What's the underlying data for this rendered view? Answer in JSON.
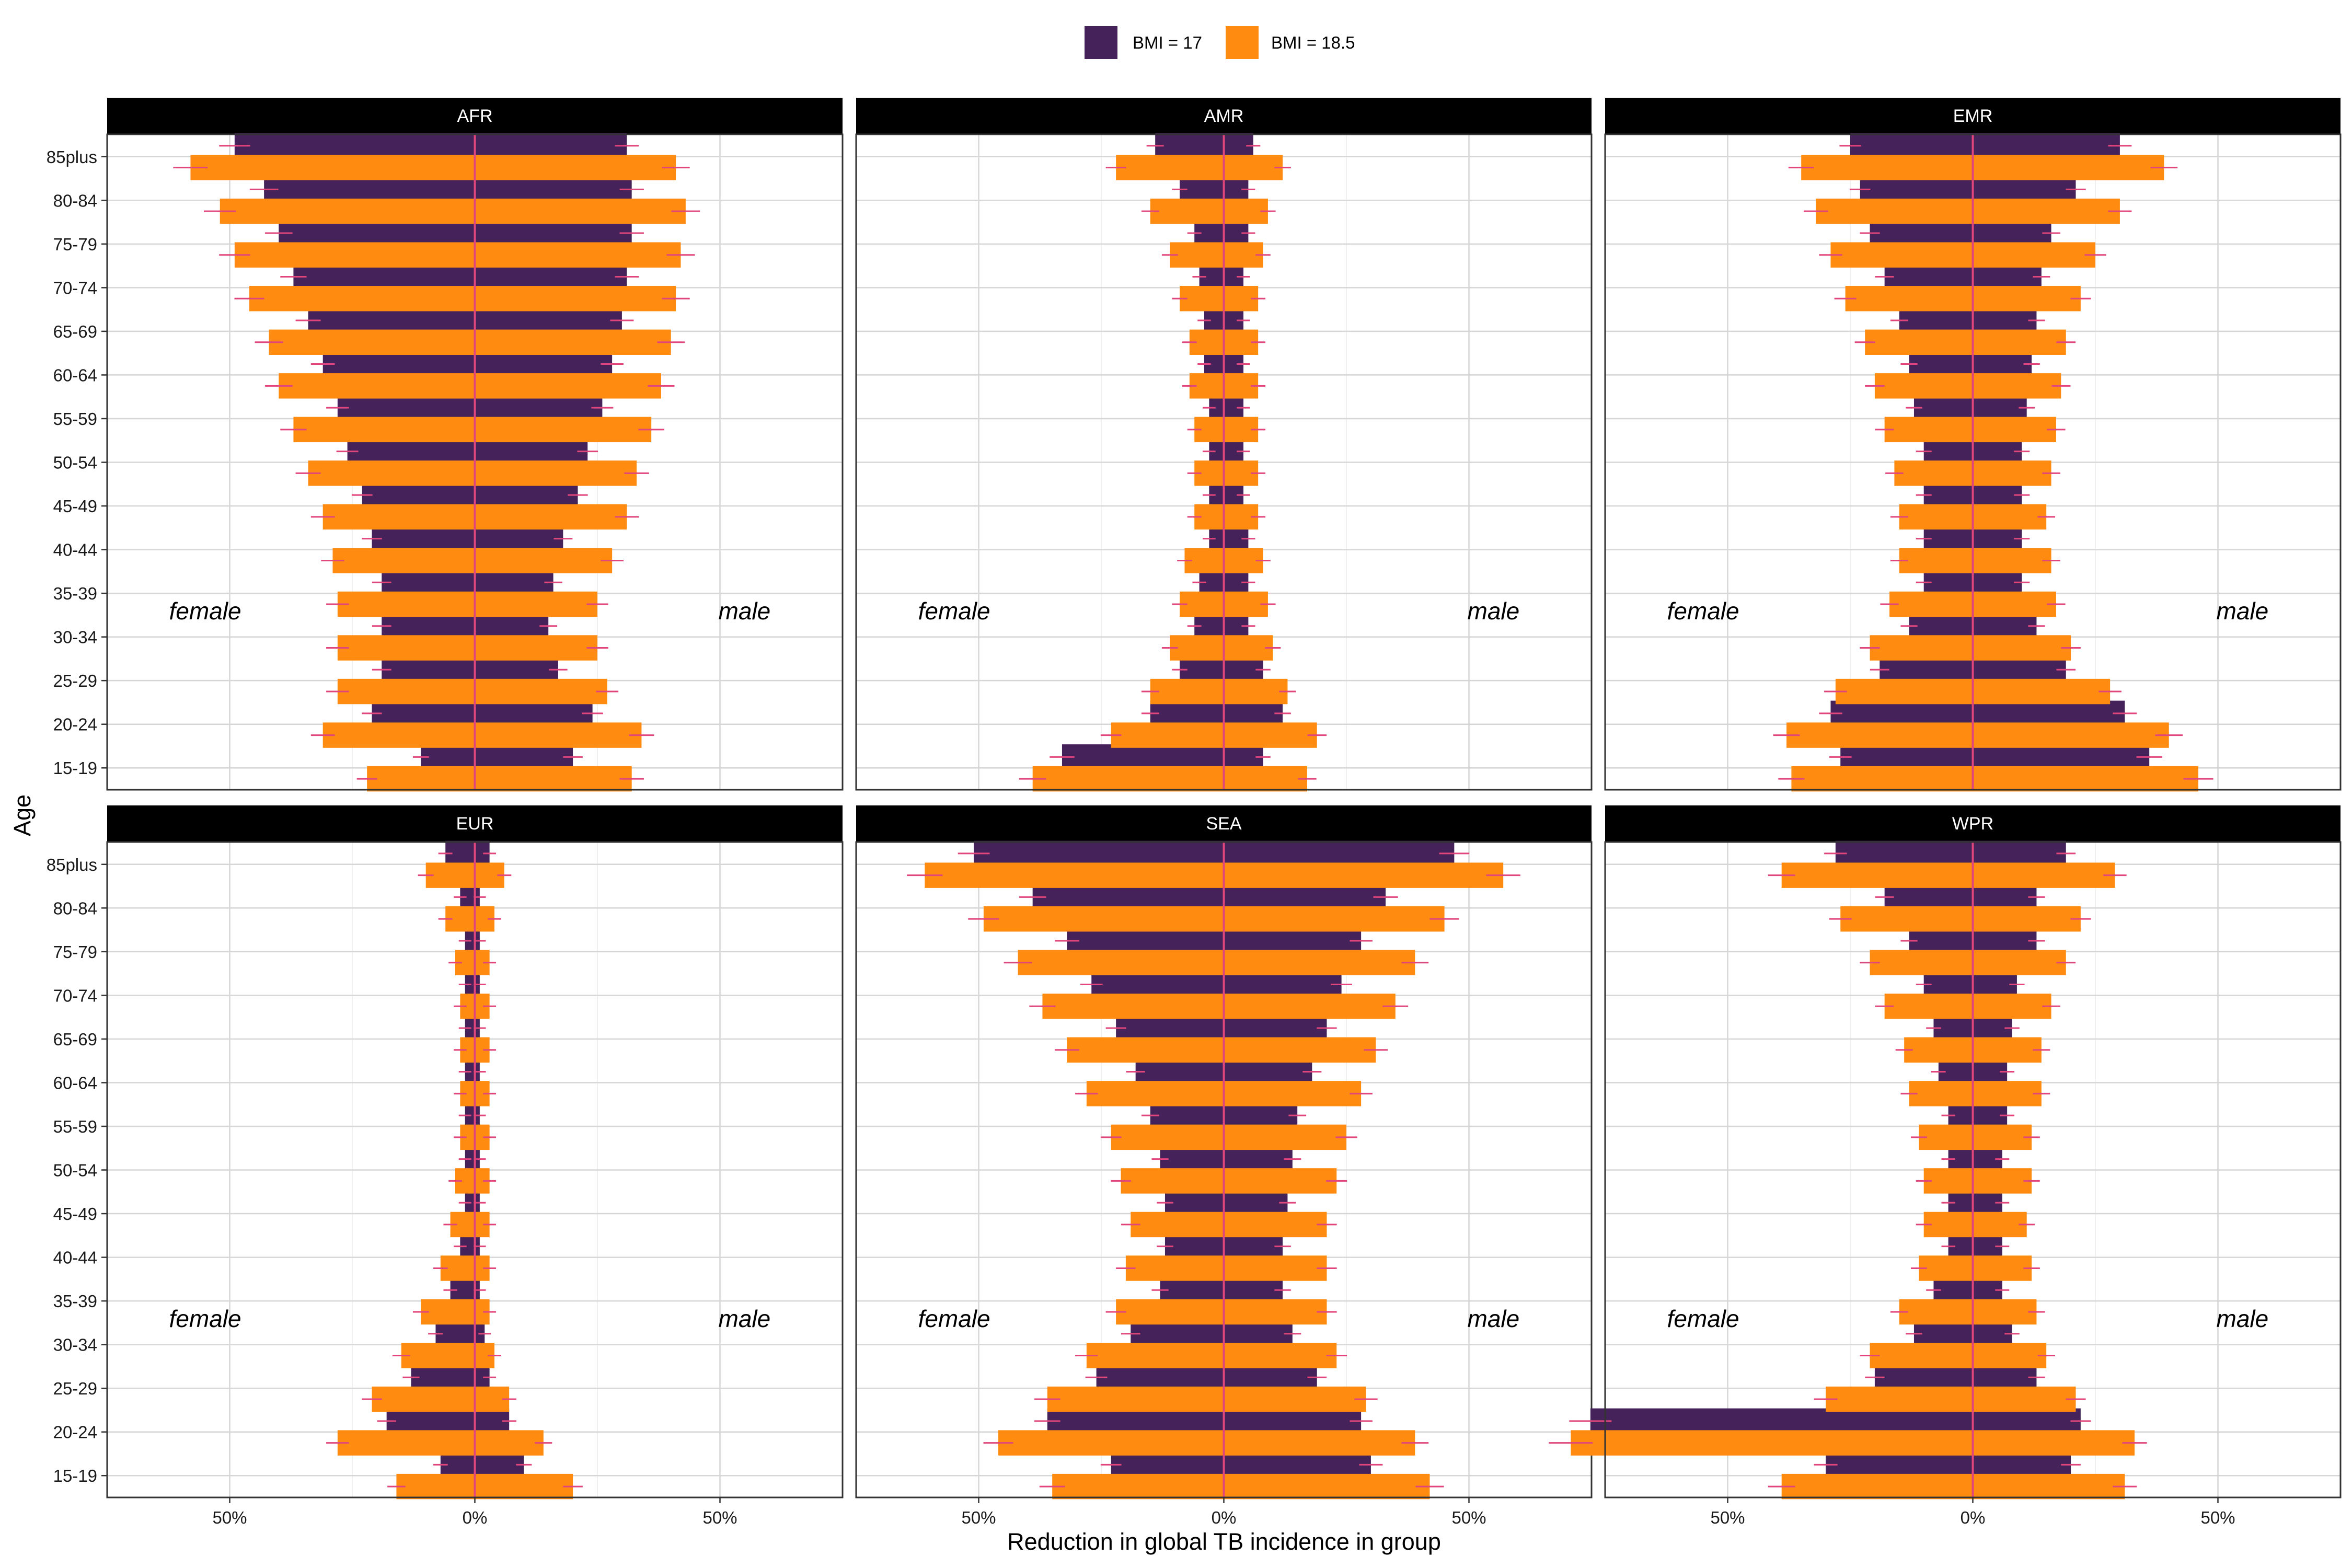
{
  "chart_data": {
    "type": "bar",
    "layout": "faceted-population-pyramid",
    "xlabel": "Reduction in global TB incidence in group",
    "ylabel": "Age",
    "xlim": [
      -0.75,
      0.75
    ],
    "x_ticks": [
      -0.5,
      0,
      0.5
    ],
    "x_tick_labels": [
      "50%",
      "0%",
      "50%"
    ],
    "categories": [
      "15-19",
      "20-24",
      "25-29",
      "30-34",
      "35-39",
      "40-44",
      "45-49",
      "50-54",
      "55-59",
      "60-64",
      "65-69",
      "70-74",
      "75-79",
      "80-84",
      "85plus"
    ],
    "legend": {
      "position": "top",
      "items": [
        {
          "label": "BMI = 17",
          "color": "#45235A"
        },
        {
          "label": "BMI = 18.5",
          "color": "#FF8C10"
        }
      ]
    },
    "colors": {
      "bmi17": "#45235A",
      "bmi185": "#FF8C10",
      "errorbar": "#E0457B",
      "zero_line": "#E0457B",
      "strip": "#000000"
    },
    "sex_labels": {
      "female": "female",
      "male": "male"
    },
    "facets": [
      {
        "name": "AFR",
        "bmi17": {
          "female": [
            0.11,
            0.21,
            0.19,
            0.19,
            0.19,
            0.21,
            0.23,
            0.26,
            0.28,
            0.31,
            0.34,
            0.37,
            0.4,
            0.43,
            0.49
          ],
          "male": [
            0.2,
            0.24,
            0.17,
            0.15,
            0.16,
            0.18,
            0.21,
            0.23,
            0.26,
            0.28,
            0.3,
            0.31,
            0.32,
            0.32,
            0.31
          ]
        },
        "bmi185": {
          "female": [
            0.22,
            0.31,
            0.28,
            0.28,
            0.28,
            0.29,
            0.31,
            0.34,
            0.37,
            0.4,
            0.42,
            0.46,
            0.49,
            0.52,
            0.58
          ],
          "male": [
            0.32,
            0.34,
            0.27,
            0.25,
            0.25,
            0.28,
            0.31,
            0.33,
            0.36,
            0.38,
            0.4,
            0.41,
            0.42,
            0.43,
            0.41
          ]
        }
      },
      {
        "name": "AMR",
        "bmi17": {
          "female": [
            0.33,
            0.15,
            0.09,
            0.06,
            0.05,
            0.03,
            0.03,
            0.03,
            0.03,
            0.04,
            0.04,
            0.05,
            0.06,
            0.09,
            0.14
          ],
          "male": [
            0.08,
            0.12,
            0.08,
            0.05,
            0.05,
            0.05,
            0.04,
            0.04,
            0.04,
            0.04,
            0.04,
            0.04,
            0.05,
            0.05,
            0.06
          ]
        },
        "bmi185": {
          "female": [
            0.39,
            0.23,
            0.15,
            0.11,
            0.09,
            0.08,
            0.06,
            0.06,
            0.06,
            0.07,
            0.07,
            0.09,
            0.11,
            0.15,
            0.22
          ],
          "male": [
            0.17,
            0.19,
            0.13,
            0.1,
            0.09,
            0.08,
            0.07,
            0.07,
            0.07,
            0.07,
            0.07,
            0.07,
            0.08,
            0.09,
            0.12
          ]
        }
      },
      {
        "name": "EMR",
        "bmi17": {
          "female": [
            0.27,
            0.29,
            0.19,
            0.13,
            0.1,
            0.1,
            0.1,
            0.1,
            0.12,
            0.13,
            0.15,
            0.18,
            0.21,
            0.23,
            0.25
          ],
          "male": [
            0.36,
            0.31,
            0.19,
            0.13,
            0.1,
            0.1,
            0.1,
            0.1,
            0.11,
            0.12,
            0.13,
            0.14,
            0.16,
            0.21,
            0.3
          ]
        },
        "bmi185": {
          "female": [
            0.37,
            0.38,
            0.28,
            0.21,
            0.17,
            0.15,
            0.15,
            0.16,
            0.18,
            0.2,
            0.22,
            0.26,
            0.29,
            0.32,
            0.35
          ],
          "male": [
            0.46,
            0.4,
            0.28,
            0.2,
            0.17,
            0.16,
            0.15,
            0.16,
            0.17,
            0.18,
            0.19,
            0.22,
            0.25,
            0.3,
            0.39
          ]
        }
      },
      {
        "name": "EUR",
        "bmi17": {
          "female": [
            0.07,
            0.18,
            0.13,
            0.08,
            0.05,
            0.03,
            0.02,
            0.02,
            0.02,
            0.02,
            0.02,
            0.02,
            0.02,
            0.03,
            0.06
          ],
          "male": [
            0.1,
            0.07,
            0.03,
            0.02,
            0.01,
            0.01,
            0.01,
            0.01,
            0.01,
            0.01,
            0.01,
            0.01,
            0.01,
            0.01,
            0.03
          ]
        },
        "bmi185": {
          "female": [
            0.16,
            0.28,
            0.21,
            0.15,
            0.11,
            0.07,
            0.05,
            0.04,
            0.03,
            0.03,
            0.03,
            0.03,
            0.04,
            0.06,
            0.1
          ],
          "male": [
            0.2,
            0.14,
            0.07,
            0.04,
            0.03,
            0.03,
            0.03,
            0.03,
            0.03,
            0.03,
            0.03,
            0.03,
            0.03,
            0.04,
            0.06
          ]
        }
      },
      {
        "name": "SEA",
        "bmi17": {
          "female": [
            0.23,
            0.36,
            0.26,
            0.19,
            0.13,
            0.12,
            0.12,
            0.13,
            0.15,
            0.18,
            0.22,
            0.27,
            0.32,
            0.39,
            0.51
          ],
          "male": [
            0.3,
            0.28,
            0.19,
            0.14,
            0.12,
            0.12,
            0.13,
            0.14,
            0.15,
            0.18,
            0.21,
            0.24,
            0.28,
            0.33,
            0.47
          ]
        },
        "bmi185": {
          "female": [
            0.35,
            0.46,
            0.36,
            0.28,
            0.22,
            0.2,
            0.19,
            0.21,
            0.23,
            0.28,
            0.32,
            0.37,
            0.42,
            0.49,
            0.61
          ],
          "male": [
            0.42,
            0.39,
            0.29,
            0.23,
            0.21,
            0.21,
            0.21,
            0.23,
            0.25,
            0.28,
            0.31,
            0.35,
            0.39,
            0.45,
            0.57
          ]
        }
      },
      {
        "name": "WPR",
        "bmi17": {
          "female": [
            0.3,
            0.78,
            0.2,
            0.12,
            0.08,
            0.05,
            0.05,
            0.05,
            0.05,
            0.07,
            0.08,
            0.1,
            0.13,
            0.18,
            0.28
          ],
          "male": [
            0.2,
            0.22,
            0.13,
            0.08,
            0.06,
            0.06,
            0.06,
            0.06,
            0.07,
            0.07,
            0.08,
            0.09,
            0.13,
            0.13,
            0.19
          ]
        },
        "bmi185": {
          "female": [
            0.39,
            0.82,
            0.3,
            0.21,
            0.15,
            0.11,
            0.1,
            0.1,
            0.11,
            0.13,
            0.14,
            0.18,
            0.21,
            0.27,
            0.39
          ],
          "male": [
            0.31,
            0.33,
            0.21,
            0.15,
            0.13,
            0.12,
            0.11,
            0.12,
            0.12,
            0.14,
            0.14,
            0.16,
            0.19,
            0.22,
            0.29
          ]
        }
      }
    ]
  }
}
